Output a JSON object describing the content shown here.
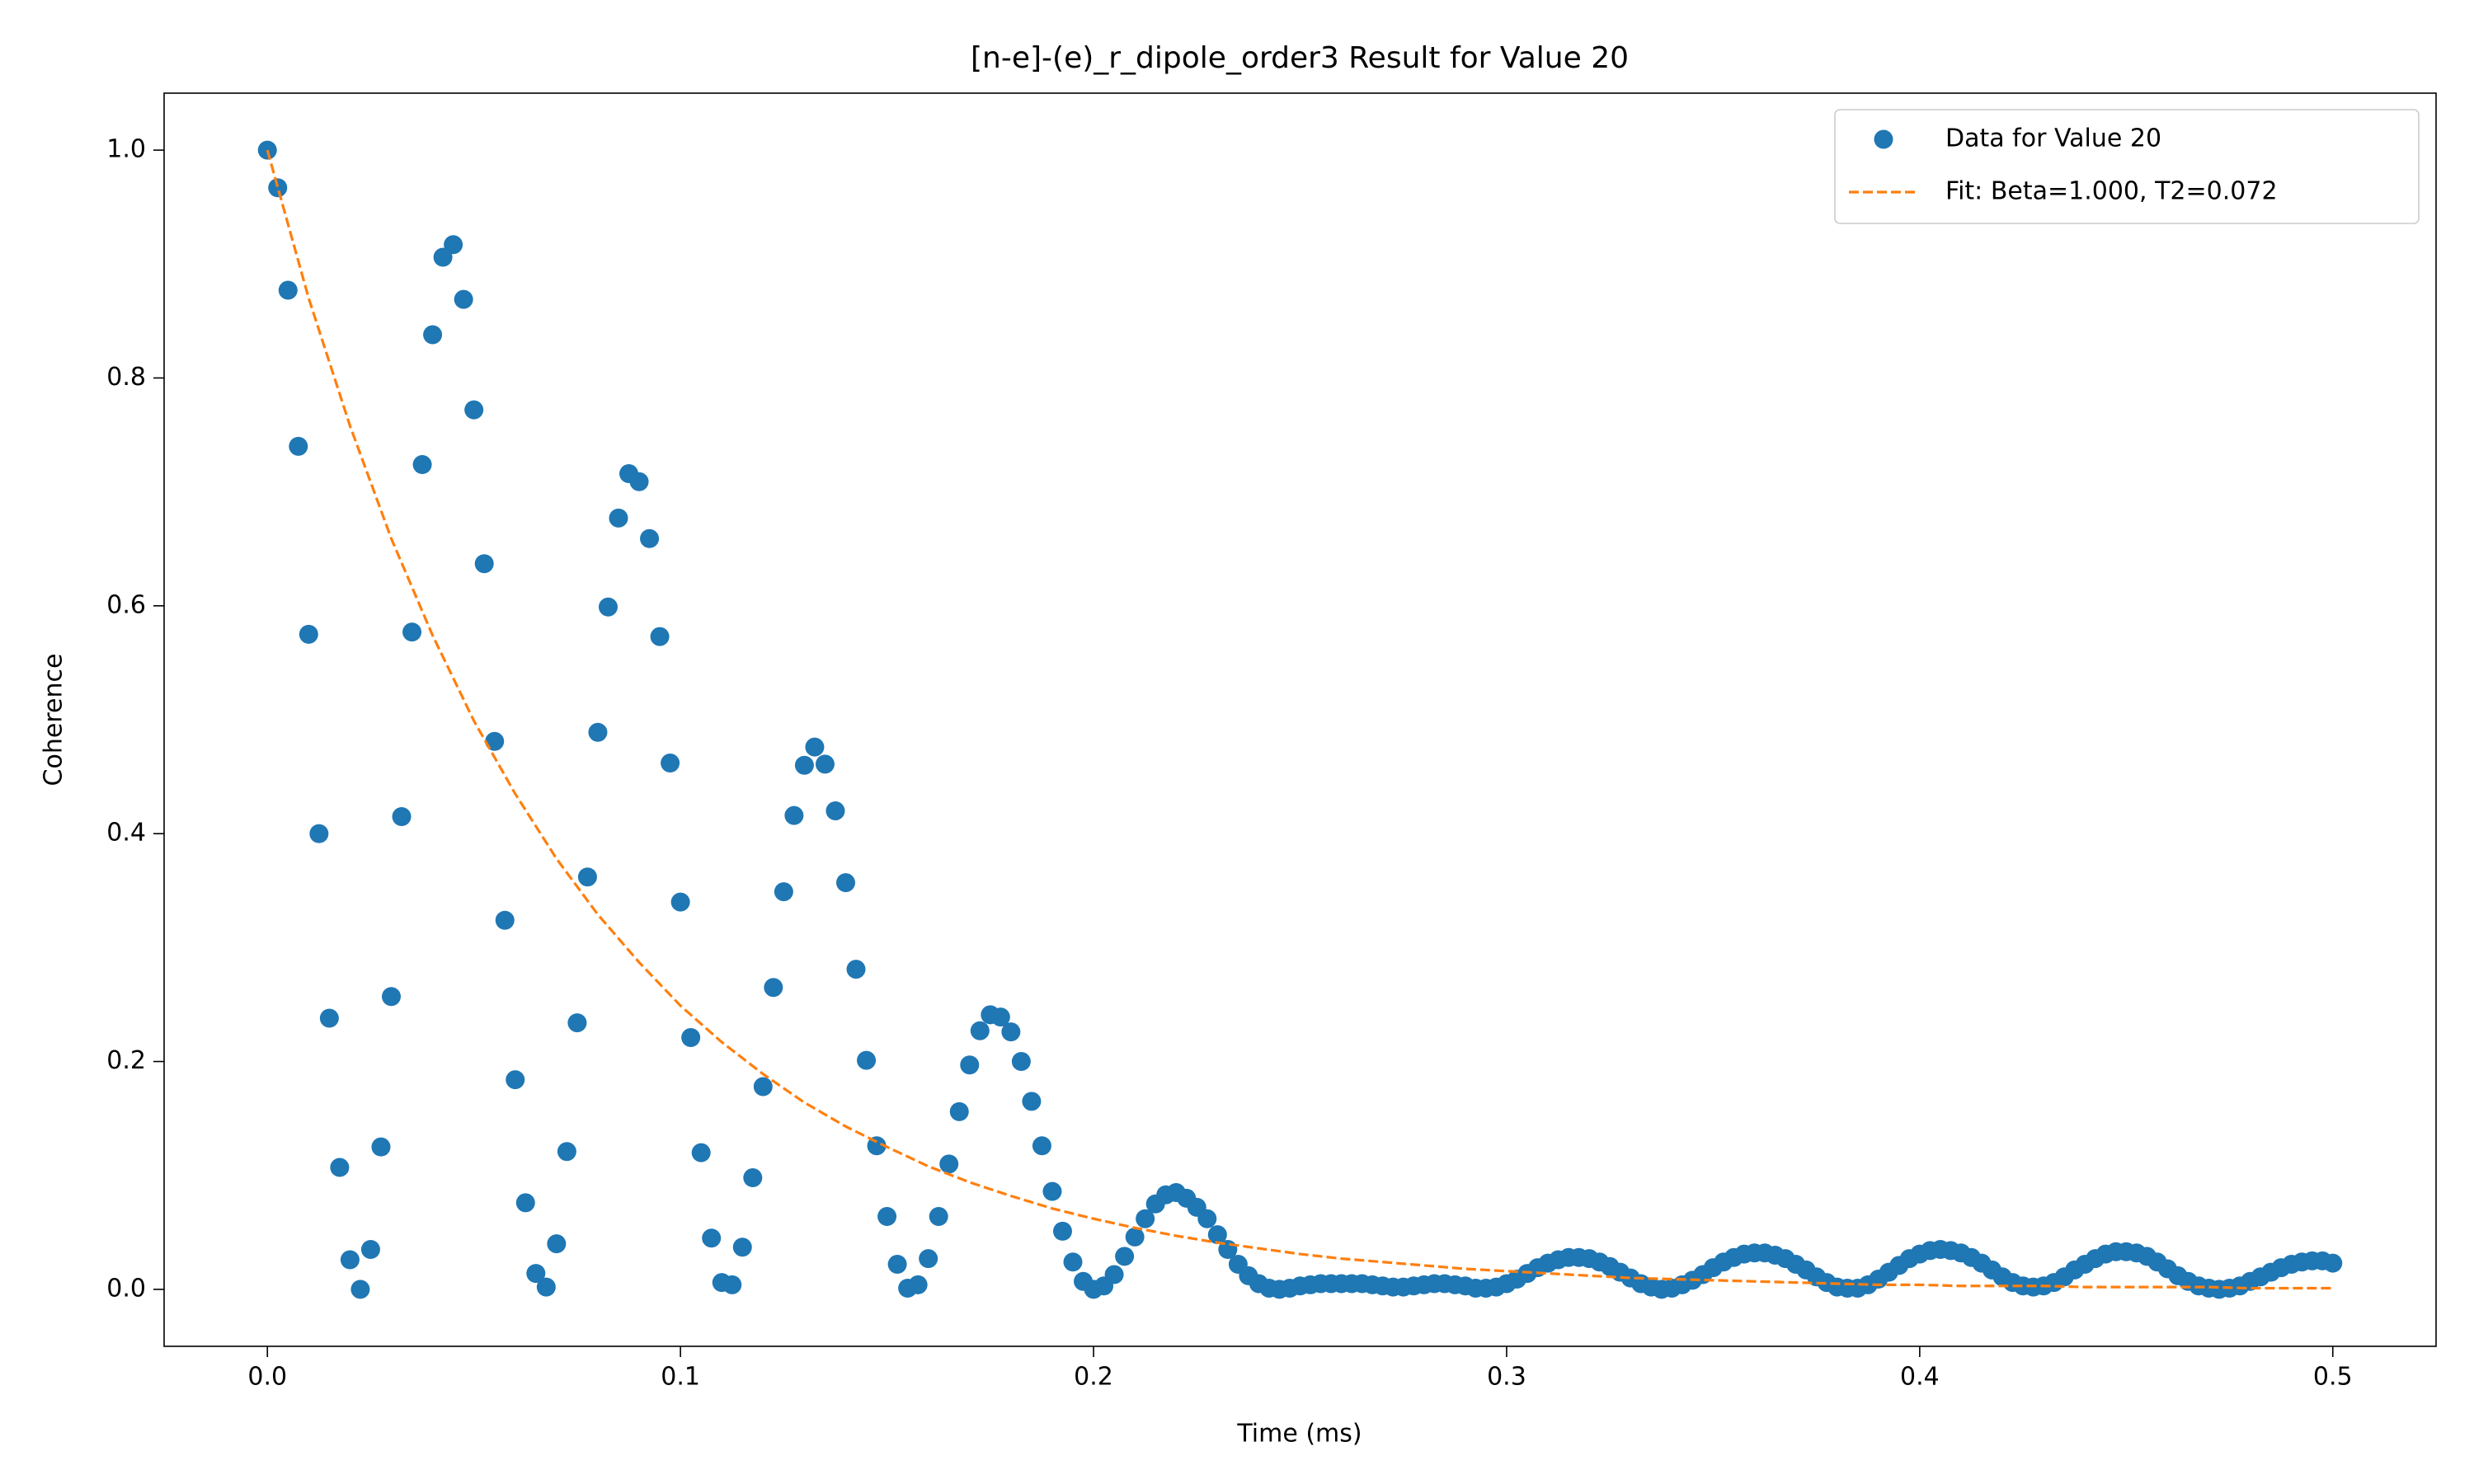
{
  "chart_data": {
    "type": "scatter",
    "title": "[n-e]-(e)_r_dipole_order3 Result for Value 20",
    "x_label": "Time (ms)",
    "y_label": "Coherence",
    "xlim": [
      -0.025,
      0.525
    ],
    "ylim": [
      -0.05,
      1.05
    ],
    "xticks": [
      {
        "value": 0,
        "label": "0.0"
      },
      {
        "value": 0.1,
        "label": "0.1"
      },
      {
        "value": 0.2,
        "label": "0.2"
      },
      {
        "value": 0.3,
        "label": "0.3"
      },
      {
        "value": 0.4,
        "label": "0.4"
      },
      {
        "value": 0.5,
        "label": "0.5"
      }
    ],
    "yticks": [
      {
        "value": 0,
        "label": "0.0"
      },
      {
        "value": 0.2,
        "label": "0.2"
      },
      {
        "value": 0.4,
        "label": "0.4"
      },
      {
        "value": 0.6,
        "label": "0.6"
      },
      {
        "value": 0.8,
        "label": "0.8"
      },
      {
        "value": 1,
        "label": "1.0"
      }
    ],
    "grid": false,
    "legend": "upper right",
    "series": [
      {
        "name": "Data for Value 20",
        "color": "#1f77b4",
        "mode": "markers",
        "x": [
          0,
          0.0025,
          0.005,
          0.0075,
          0.01,
          0.0125,
          0.015,
          0.0175,
          0.02,
          0.0225,
          0.025,
          0.0275,
          0.03,
          0.0325,
          0.035,
          0.0375,
          0.04,
          0.0425,
          0.045,
          0.0475,
          0.05,
          0.0525,
          0.055,
          0.0575,
          0.06,
          0.0625,
          0.065,
          0.0675,
          0.07,
          0.0725,
          0.075,
          0.0775,
          0.08,
          0.0825,
          0.085,
          0.0875,
          0.09,
          0.0925,
          0.095,
          0.0975,
          0.1,
          0.1025,
          0.105,
          0.1075,
          0.11,
          0.1125,
          0.115,
          0.1175,
          0.12,
          0.1225,
          0.125,
          0.1275,
          0.13,
          0.1325,
          0.135,
          0.1375,
          0.14,
          0.1425,
          0.145,
          0.1475,
          0.15,
          0.1525,
          0.155,
          0.1575,
          0.16,
          0.1625,
          0.165,
          0.1675,
          0.17,
          0.1725,
          0.175,
          0.1775,
          0.18,
          0.1825,
          0.185,
          0.1875,
          0.19,
          0.1925,
          0.195,
          0.1975,
          0.2,
          0.2025,
          0.205,
          0.2075,
          0.21,
          0.2125,
          0.215,
          0.2175,
          0.22,
          0.2225,
          0.225,
          0.2275,
          0.23,
          0.2325,
          0.235,
          0.2375,
          0.24,
          0.2425,
          0.245,
          0.2475,
          0.25,
          0.2525,
          0.255,
          0.2575,
          0.26,
          0.2625,
          0.265,
          0.2675,
          0.27,
          0.2725,
          0.275,
          0.2775,
          0.28,
          0.2825,
          0.285,
          0.2875,
          0.29,
          0.2925,
          0.295,
          0.2975,
          0.3,
          0.3025,
          0.305,
          0.3075,
          0.31,
          0.3125,
          0.315,
          0.3175,
          0.32,
          0.3225,
          0.325,
          0.3275,
          0.33,
          0.3325,
          0.335,
          0.3375,
          0.34,
          0.3425,
          0.345,
          0.3475,
          0.35,
          0.3525,
          0.355,
          0.3575,
          0.36,
          0.3625,
          0.365,
          0.3675,
          0.37,
          0.3725,
          0.375,
          0.3775,
          0.38,
          0.3825,
          0.385,
          0.3875,
          0.39,
          0.3925,
          0.395,
          0.3975,
          0.4,
          0.4025,
          0.405,
          0.4075,
          0.41,
          0.4125,
          0.415,
          0.4175,
          0.42,
          0.4225,
          0.425,
          0.4275,
          0.43,
          0.4325,
          0.435,
          0.4375,
          0.44,
          0.4425,
          0.445,
          0.4475,
          0.45,
          0.4525,
          0.455,
          0.4575,
          0.46,
          0.4625,
          0.465,
          0.4675,
          0.47,
          0.4725,
          0.475,
          0.4775,
          0.48,
          0.4825,
          0.485,
          0.4875,
          0.49,
          0.4925,
          0.495,
          0.4975,
          0.5
        ],
        "values": [
          1.0,
          0.967,
          0.877,
          0.74,
          0.575,
          0.4,
          0.238,
          0.107,
          0.026,
          0.0,
          0.035,
          0.125,
          0.257,
          0.415,
          0.577,
          0.724,
          0.838,
          0.906,
          0.917,
          0.869,
          0.772,
          0.637,
          0.481,
          0.324,
          0.184,
          0.076,
          0.014,
          0.002,
          0.04,
          0.121,
          0.234,
          0.362,
          0.489,
          0.599,
          0.677,
          0.716,
          0.709,
          0.659,
          0.573,
          0.462,
          0.34,
          0.221,
          0.12,
          0.045,
          0.006,
          0.004,
          0.037,
          0.098,
          0.178,
          0.265,
          0.349,
          0.416,
          0.46,
          0.476,
          0.461,
          0.42,
          0.357,
          0.281,
          0.201,
          0.126,
          0.064,
          0.022,
          0.001,
          0.004,
          0.027,
          0.064,
          0.11,
          0.156,
          0.197,
          0.227,
          0.241,
          0.239,
          0.226,
          0.2,
          0.165,
          0.126,
          0.086,
          0.051,
          0.024,
          0.007,
          0.0,
          0.003,
          0.013,
          0.029,
          0.046,
          0.062,
          0.075,
          0.083,
          0.085,
          0.08,
          0.072,
          0.062,
          0.048,
          0.035,
          0.022,
          0.012,
          0.005,
          0.001,
          0.0,
          0.001,
          0.003,
          0.004,
          0.005,
          0.005,
          0.005,
          0.005,
          0.005,
          0.004,
          0.003,
          0.002,
          0.002,
          0.003,
          0.004,
          0.005,
          0.005,
          0.004,
          0.003,
          0.001,
          0.001,
          0.002,
          0.005,
          0.009,
          0.014,
          0.019,
          0.023,
          0.026,
          0.028,
          0.028,
          0.027,
          0.024,
          0.02,
          0.015,
          0.01,
          0.005,
          0.002,
          0.0,
          0.001,
          0.004,
          0.008,
          0.013,
          0.019,
          0.024,
          0.028,
          0.031,
          0.032,
          0.032,
          0.03,
          0.027,
          0.022,
          0.017,
          0.011,
          0.006,
          0.002,
          0.001,
          0.001,
          0.004,
          0.009,
          0.015,
          0.021,
          0.027,
          0.031,
          0.034,
          0.035,
          0.034,
          0.032,
          0.028,
          0.023,
          0.017,
          0.011,
          0.006,
          0.003,
          0.002,
          0.003,
          0.006,
          0.011,
          0.017,
          0.022,
          0.027,
          0.031,
          0.033,
          0.033,
          0.032,
          0.029,
          0.024,
          0.018,
          0.012,
          0.007,
          0.003,
          0.001,
          0.0,
          0.001,
          0.003,
          0.007,
          0.011,
          0.015,
          0.019,
          0.022,
          0.024,
          0.025,
          0.025,
          0.023
        ]
      },
      {
        "name": "Fit: Beta=1.000, T2=0.072",
        "color": "#ff7f0e",
        "mode": "line",
        "dashed": true,
        "x": [
          0,
          0.01,
          0.02,
          0.03,
          0.04,
          0.05,
          0.06,
          0.07,
          0.08,
          0.09,
          0.1,
          0.11,
          0.12,
          0.13,
          0.14,
          0.15,
          0.16,
          0.17,
          0.18,
          0.19,
          0.2,
          0.21,
          0.22,
          0.23,
          0.24,
          0.25,
          0.26,
          0.27,
          0.28,
          0.29,
          0.3,
          0.31,
          0.32,
          0.33,
          0.34,
          0.35,
          0.36,
          0.37,
          0.38,
          0.39,
          0.4,
          0.41,
          0.42,
          0.43,
          0.44,
          0.45,
          0.46,
          0.47,
          0.48,
          0.49,
          0.5
        ],
        "values": [
          1.0,
          0.87,
          0.758,
          0.659,
          0.574,
          0.499,
          0.435,
          0.378,
          0.329,
          0.287,
          0.249,
          0.217,
          0.189,
          0.164,
          0.143,
          0.125,
          0.108,
          0.094,
          0.082,
          0.071,
          0.062,
          0.054,
          0.047,
          0.041,
          0.036,
          0.031,
          0.027,
          0.024,
          0.021,
          0.018,
          0.016,
          0.014,
          0.012,
          0.01,
          0.009,
          0.008,
          0.007,
          0.006,
          0.005,
          0.004,
          0.004,
          0.003,
          0.003,
          0.003,
          0.002,
          0.002,
          0.002,
          0.002,
          0.001,
          0.001,
          0.001
        ]
      }
    ]
  }
}
